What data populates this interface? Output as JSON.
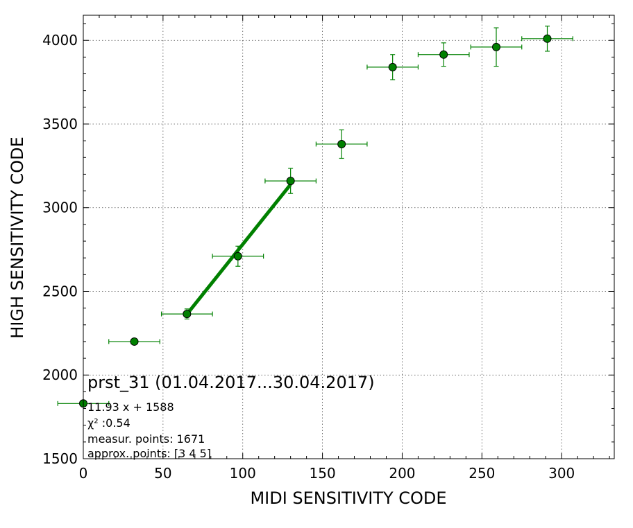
{
  "chart_data": {
    "type": "scatter",
    "xlabel": "MIDI SENSITIVITY CODE",
    "ylabel": "HIGH SENSITIVITY CODE",
    "xlim": [
      0,
      333
    ],
    "ylim": [
      1500,
      4150
    ],
    "x_ticks": [
      0,
      50,
      100,
      150,
      200,
      250,
      300
    ],
    "y_ticks": [
      1500,
      2000,
      2500,
      3000,
      3500,
      4000
    ],
    "grid": true,
    "color": "#008000",
    "series": [
      {
        "points": [
          {
            "x": 0,
            "y": 1830,
            "xerr": 16,
            "yerr": 0
          },
          {
            "x": 32,
            "y": 2200,
            "xerr": 16,
            "yerr": 0
          },
          {
            "x": 65,
            "y": 2365,
            "xerr": 16,
            "yerr": 30
          },
          {
            "x": 97,
            "y": 2710,
            "xerr": 16,
            "yerr": 60
          },
          {
            "x": 130,
            "y": 3160,
            "xerr": 16,
            "yerr": 75
          },
          {
            "x": 162,
            "y": 3380,
            "xerr": 16,
            "yerr": 85
          },
          {
            "x": 194,
            "y": 3840,
            "xerr": 16,
            "yerr": 75
          },
          {
            "x": 226,
            "y": 3915,
            "xerr": 16,
            "yerr": 70
          },
          {
            "x": 259,
            "y": 3960,
            "xerr": 16,
            "yerr": 115
          },
          {
            "x": 291,
            "y": 4010,
            "xerr": 16,
            "yerr": 75
          }
        ]
      }
    ],
    "fit_line": {
      "slope": 11.93,
      "intercept": 1588,
      "x_range": [
        65,
        130
      ],
      "color": "#008000"
    },
    "annotation": {
      "title": "prst_31 (01.04.2017...30.04.2017)",
      "lines": [
        "11.93 x + 1588",
        "χ² :0.54",
        "measur. points: 1671",
        "approx. points: [3 4 5]"
      ]
    }
  }
}
